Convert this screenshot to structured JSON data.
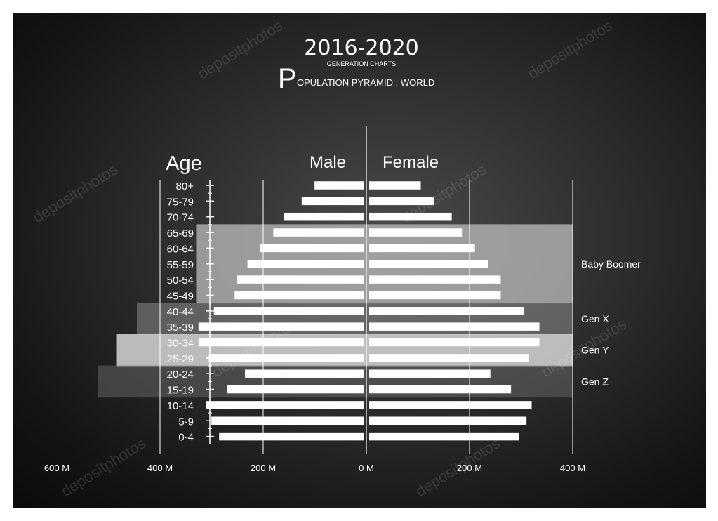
{
  "header": {
    "year": "2016-2020",
    "subtitle": "GENERATION CHARTS",
    "title_initial": "P",
    "title_rest": "OPULATION PYRAMID : WORLD"
  },
  "colors": {
    "background": "#1a1a1a",
    "bar": "#ffffff",
    "text": "#ffffff",
    "band_baby_boomer": "#bdbdbd",
    "band_gen_x": "#8a8a8a",
    "band_gen_y": "#d6d6d6",
    "band_gen_z": "#6a6a6a"
  },
  "watermark": "depositphotos",
  "chart_data": {
    "type": "bar",
    "orientation": "horizontal-pyramid",
    "title": "POPULATION PYRAMID : WORLD",
    "age_axis_label": "Age",
    "categories": [
      "80+",
      "75-79",
      "70-74",
      "65-69",
      "60-64",
      "55-59",
      "50-54",
      "45-49",
      "40-44",
      "35-39",
      "30-34",
      "25-29",
      "20-24",
      "15-19",
      "10-14",
      "5-9",
      "0-4"
    ],
    "series": [
      {
        "name": "Male",
        "values": [
          95,
          120,
          155,
          175,
          200,
          225,
          245,
          250,
          290,
          320,
          320,
          300,
          230,
          265,
          305,
          295,
          280
        ]
      },
      {
        "name": "Female",
        "values": [
          100,
          125,
          160,
          180,
          205,
          230,
          255,
          255,
          300,
          330,
          330,
          310,
          235,
          275,
          315,
          305,
          290
        ]
      }
    ],
    "x_ticks_left": [
      "600 M",
      "400 M",
      "200 M",
      "0 M"
    ],
    "x_ticks_right": [
      "200 M",
      "400 M"
    ],
    "xlim_male": [
      0,
      600
    ],
    "xlim_female": [
      0,
      400
    ],
    "grid": true,
    "generations": [
      {
        "label": "Baby Boomer",
        "from": "65-69",
        "to": "45-49",
        "male_extent": 330
      },
      {
        "label": "Gen X",
        "from": "40-44",
        "to": "35-39",
        "male_extent": 445
      },
      {
        "label": "Gen Y",
        "from": "30-34",
        "to": "25-29",
        "male_extent": 485
      },
      {
        "label": "Gen Z",
        "from": "20-24",
        "to": "15-19",
        "male_extent": 520
      }
    ]
  }
}
